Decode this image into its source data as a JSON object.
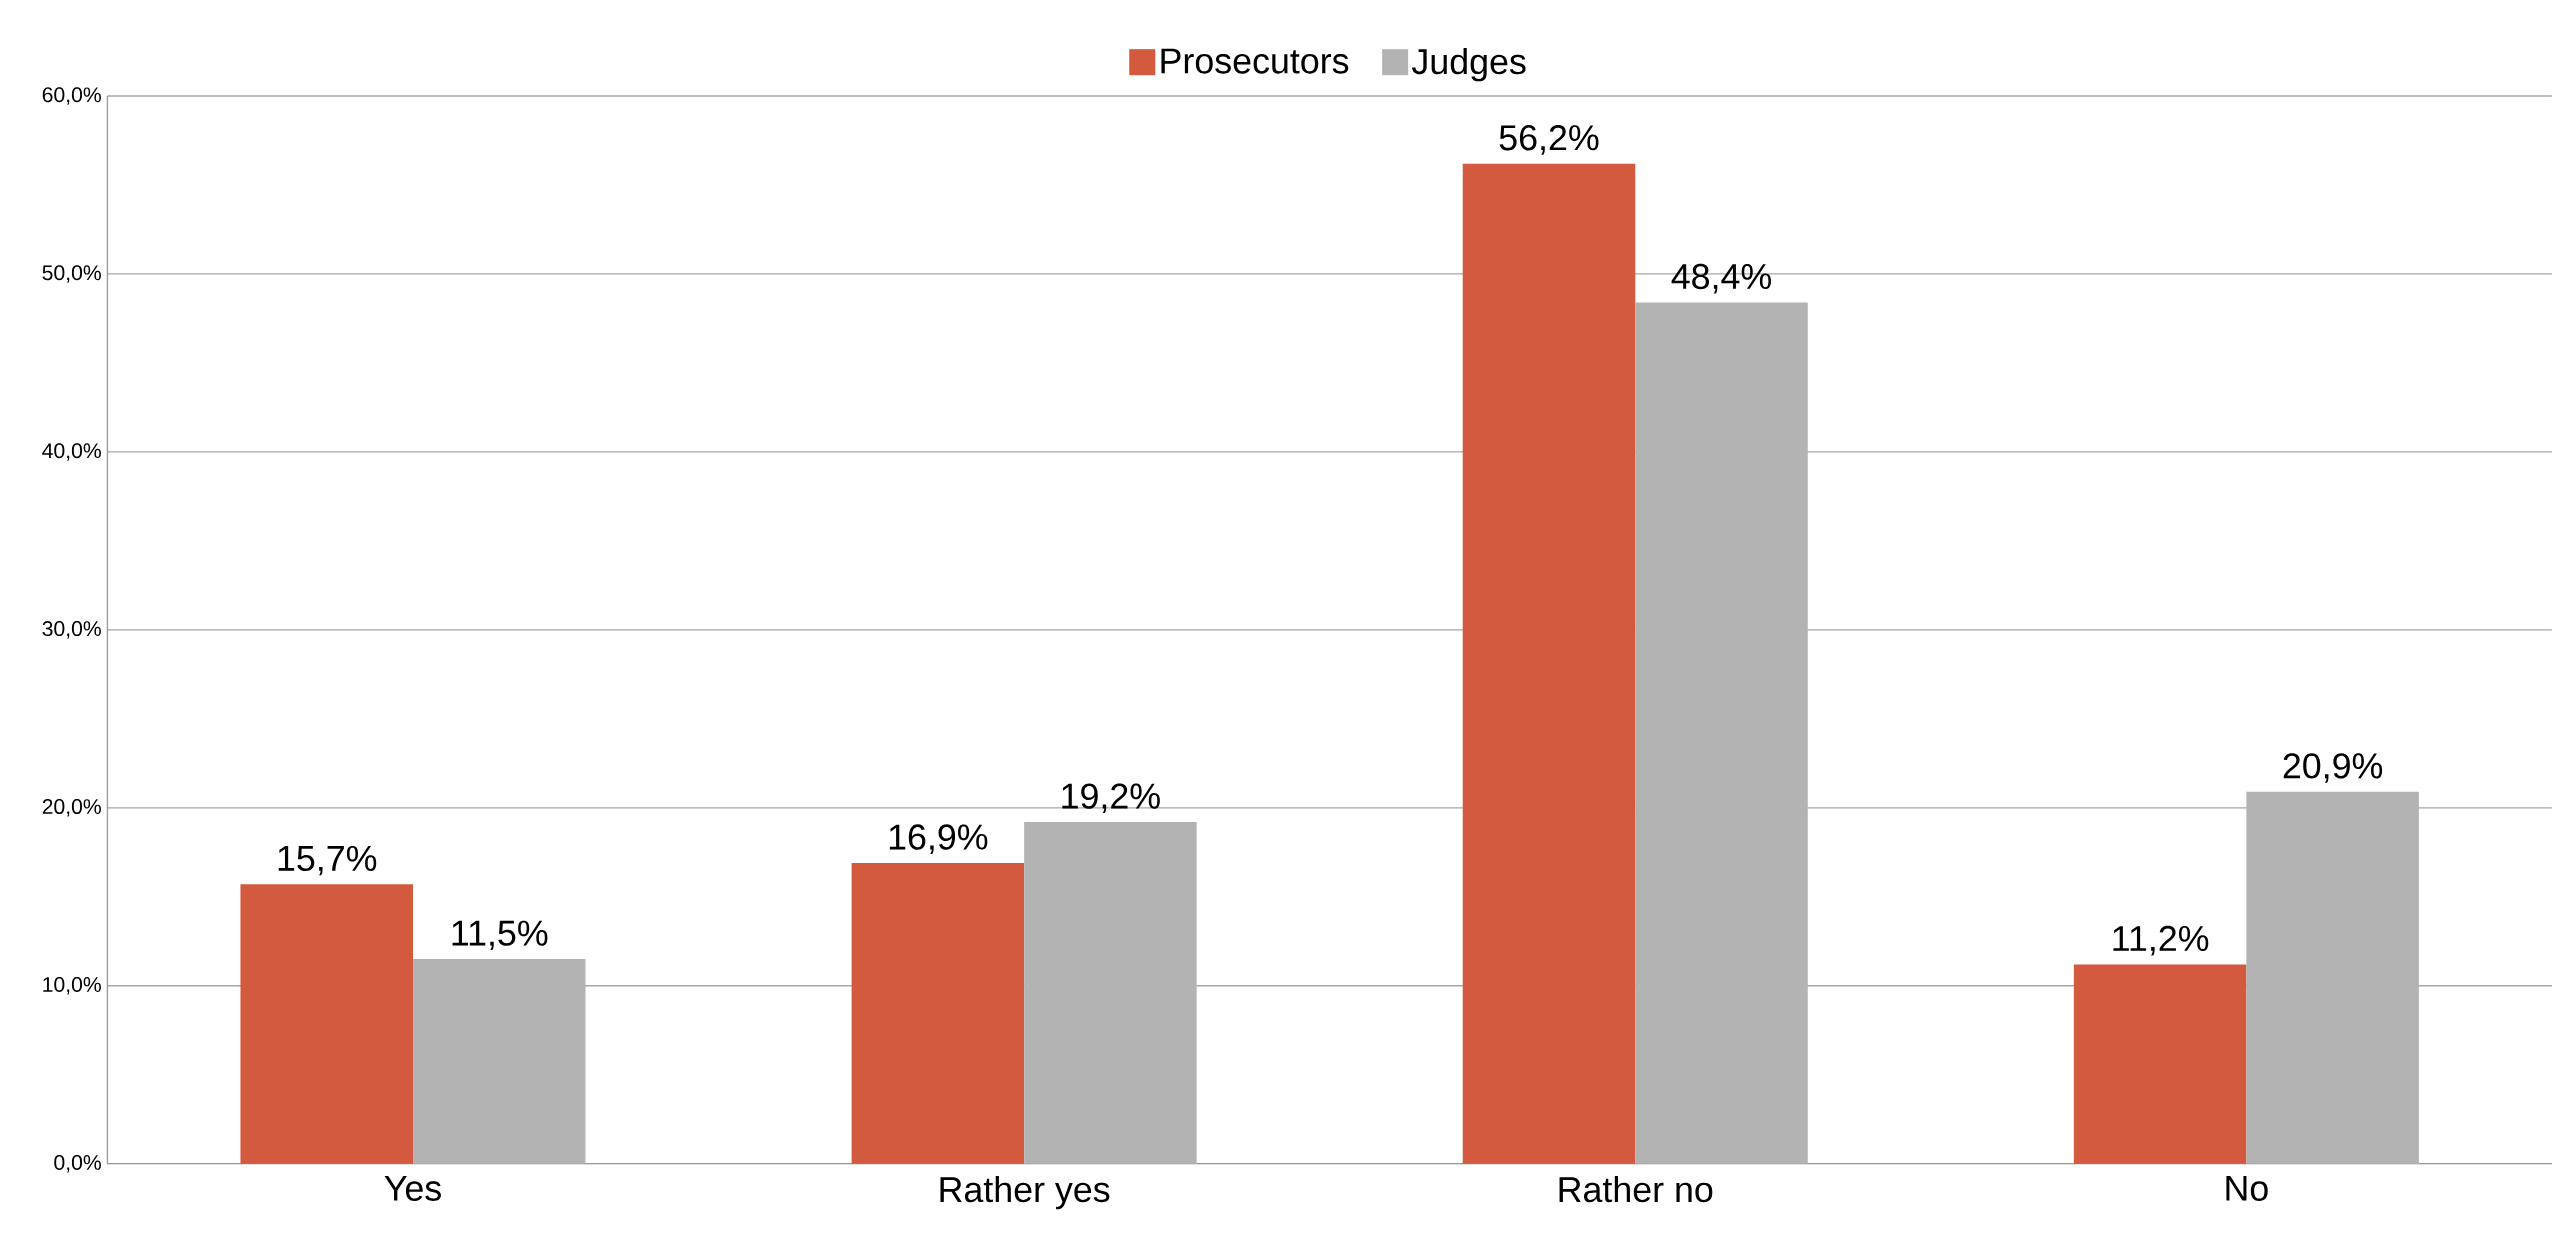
{
  "chart_data": {
    "type": "bar",
    "categories": [
      "Yes",
      "Rather yes",
      "Rather no",
      "No"
    ],
    "series": [
      {
        "name": "Prosecutors",
        "color": "#d35a3e",
        "values": [
          15.7,
          16.9,
          56.2,
          11.2
        ],
        "value_labels": [
          "15,7%",
          "16,9%",
          "56,2%",
          "11,2%"
        ]
      },
      {
        "name": "Judges",
        "color": "#b3b3b3",
        "values": [
          11.5,
          19.2,
          48.4,
          20.9
        ],
        "value_labels": [
          "11,5%",
          "19,2%",
          "48,4%",
          "20,9%"
        ]
      }
    ],
    "ylim": [
      0,
      60
    ],
    "yticks": [
      {
        "value": 0,
        "label": "0,0%"
      },
      {
        "value": 10,
        "label": "10,0%"
      },
      {
        "value": 20,
        "label": "20,0%"
      },
      {
        "value": 30,
        "label": "30,0%"
      },
      {
        "value": 40,
        "label": "40,0%"
      },
      {
        "value": 50,
        "label": "50,0%"
      },
      {
        "value": 60,
        "label": "60,0%"
      }
    ],
    "grid": "y",
    "legend": "top"
  }
}
